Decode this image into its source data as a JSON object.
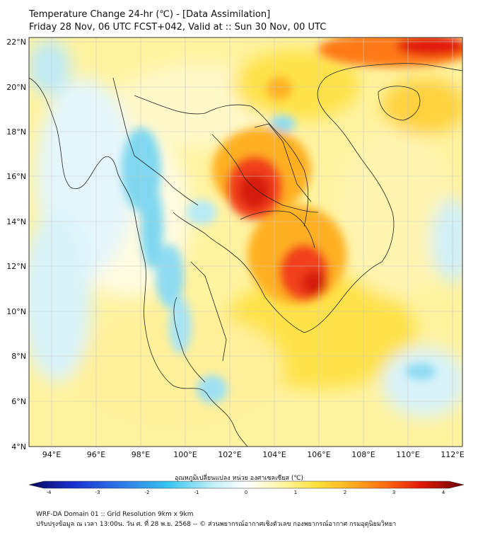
{
  "header": {
    "title_line1": "Temperature Change 24-hr (℃) - [Data Assimilation]",
    "title_line2": "Friday 28 Nov, 06 UTC FCST+042, Valid at :: Sun 30 Nov, 00 UTC"
  },
  "map": {
    "lon_ticks": [
      "94°E",
      "96°E",
      "98°E",
      "100°E",
      "102°E",
      "104°E",
      "106°E",
      "108°E",
      "110°E",
      "112°E"
    ],
    "lat_ticks": [
      "22°N",
      "20°N",
      "18°N",
      "16°N",
      "14°N",
      "12°N",
      "10°N",
      "8°N",
      "6°N",
      "4°N"
    ],
    "lon_range": [
      93,
      112.5
    ],
    "lat_range": [
      4,
      22.2
    ]
  },
  "colorbar": {
    "title": "อุณหภูมิเปลี่ยนแปลง หน่วย องศาเซลเซียส (℃)",
    "ticks": [
      "-4",
      "-3",
      "-2",
      "-1",
      "0",
      "1",
      "2",
      "3",
      "4"
    ],
    "min": -4,
    "max": 4
  },
  "footer": {
    "line1": "WRF-DA Domain 01 :: Grid Resolution 9km x 9km",
    "line2": "ปรับปรุงข้อมูล ณ เวลา 13:00น. วัน ศ. ที่ 28 พ.ย. 2568 -- © ส่วนพยากรณ์อากาศเชิงตัวเลข กองพยากรณ์อากาศ กรมอุตุนิยมวิทยา"
  }
}
